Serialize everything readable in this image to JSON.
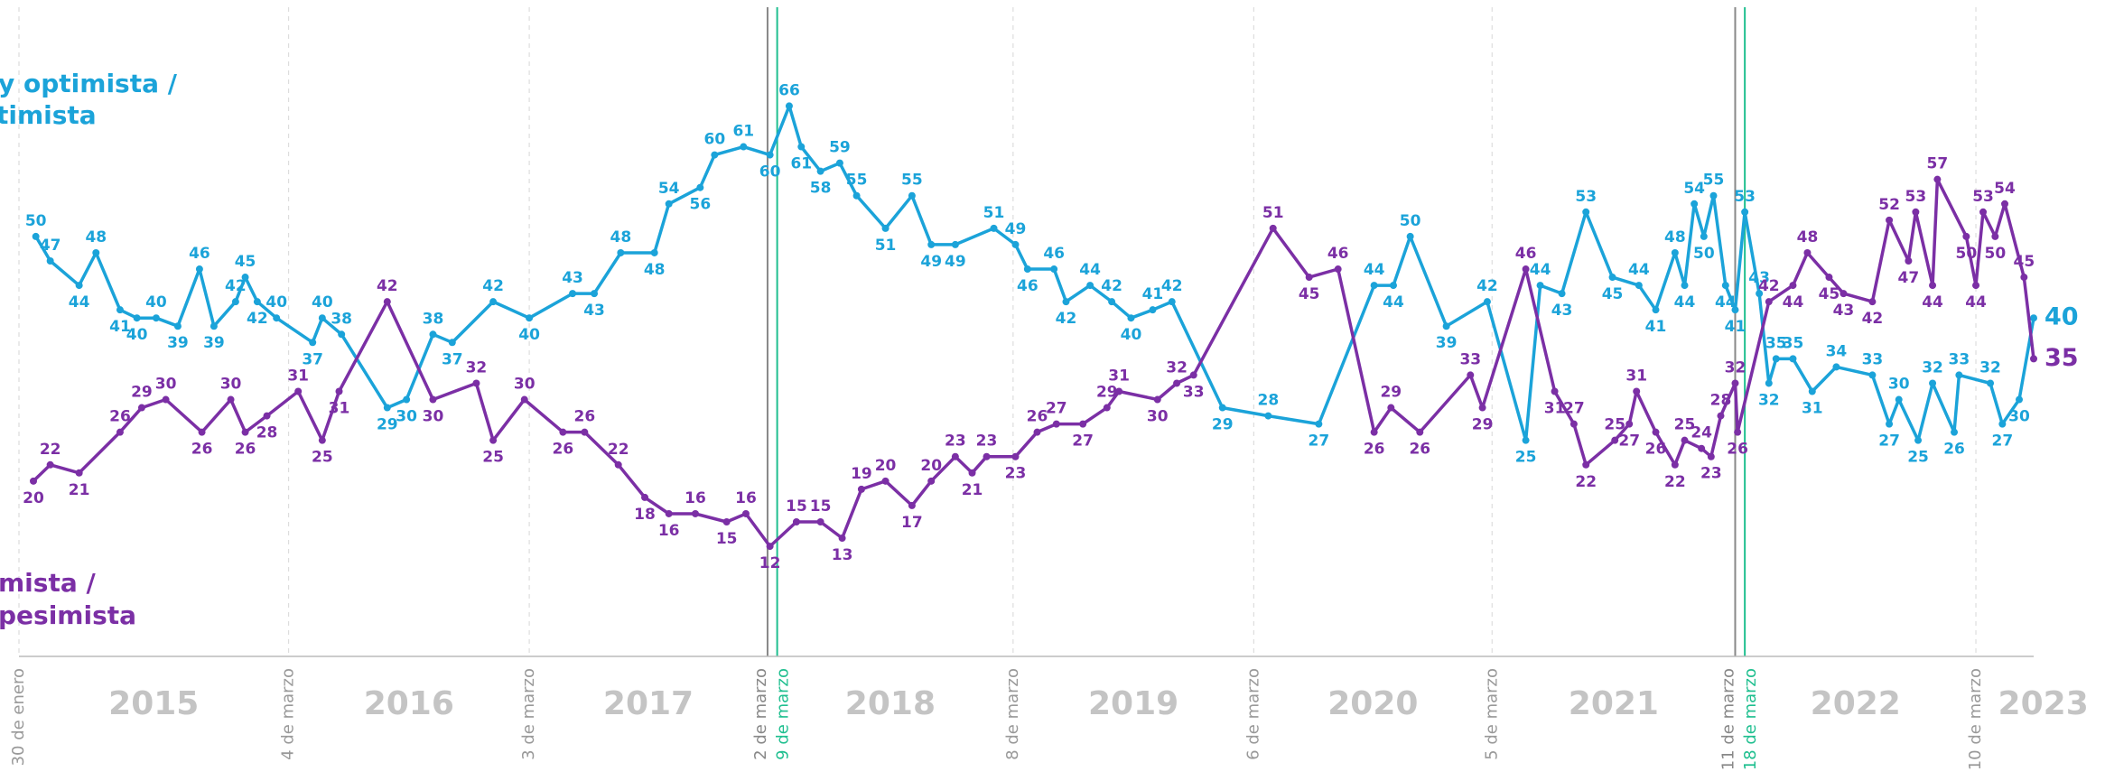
{
  "chart_data": {
    "type": "line",
    "legend": [
      {
        "lines": [
          "y optimista /",
          "timista"
        ],
        "color": "#1ba3d9"
      },
      {
        "lines": [
          "mista /",
          "pesimista"
        ],
        "color": "#7b2fa5"
      }
    ],
    "xlim": [
      2015.08,
      2023.45
    ],
    "ylim": [
      -1.5,
      79
    ],
    "xticks": [
      {
        "value": 2015.08,
        "label": "30 de enero"
      },
      {
        "value": 2016.2,
        "label": "4 de marzo"
      },
      {
        "value": 2017.2,
        "label": "3 de marzo"
      },
      {
        "value": 2018.19,
        "label": "2 de marzo",
        "color": "#888888"
      },
      {
        "value": 2018.23,
        "label": "9 de marzo",
        "color": "#1fbf8f"
      },
      {
        "value": 2019.21,
        "label": "8 de marzo"
      },
      {
        "value": 2020.21,
        "label": "6 de marzo"
      },
      {
        "value": 2021.2,
        "label": "5 de marzo"
      },
      {
        "value": 2022.21,
        "label": "11 de marzo",
        "color": "#888888"
      },
      {
        "value": 2022.25,
        "label": "18 de marzo",
        "color": "#1fbf8f"
      },
      {
        "value": 2023.21,
        "label": "10 de marzo"
      }
    ],
    "year_labels": [
      "2015",
      "2016",
      "2017",
      "2018",
      "2019",
      "2020",
      "2021",
      "2022",
      "2023"
    ],
    "series": [
      {
        "color": "#1ba3d9",
        "x": [
          2015.15,
          2015.21,
          2015.33,
          2015.4,
          2015.5,
          2015.57,
          2015.65,
          2015.74,
          2015.83,
          2015.89,
          2015.98,
          2016.02,
          2016.07,
          2016.15,
          2016.3,
          2016.34,
          2016.42,
          2016.61,
          2016.69,
          2016.8,
          2016.88,
          2017.05,
          2017.2,
          2017.38,
          2017.47,
          2017.58,
          2017.72,
          2017.78,
          2017.91,
          2017.97,
          2018.09,
          2018.2,
          2018.28,
          2018.33,
          2018.41,
          2018.49,
          2018.56,
          2018.68,
          2018.79,
          2018.87,
          2018.97,
          2019.13,
          2019.22,
          2019.27,
          2019.38,
          2019.43,
          2019.53,
          2019.62,
          2019.7,
          2019.79,
          2019.87,
          2020.08,
          2020.27,
          2020.48,
          2020.71,
          2020.79,
          2020.86,
          2021.01,
          2021.18,
          2021.34,
          2021.4,
          2021.49,
          2021.59,
          2021.7,
          2021.81,
          2021.88,
          2021.96,
          2022.0,
          2022.04,
          2022.08,
          2022.12,
          2022.17,
          2022.21,
          2022.25,
          2022.31,
          2022.35,
          2022.38,
          2022.45,
          2022.53,
          2022.63,
          2022.78,
          2022.85,
          2022.89,
          2022.97,
          2023.03,
          2023.12,
          2023.14,
          2023.27,
          2023.32,
          2023.39,
          2023.45
        ],
        "values": [
          50,
          47,
          44,
          48,
          41,
          40,
          40,
          39,
          46,
          39,
          42,
          45,
          42,
          40,
          37,
          40,
          38,
          29,
          30,
          38,
          37,
          42,
          40,
          43,
          43,
          48,
          48,
          54,
          56,
          60,
          61,
          60,
          66,
          61,
          58,
          59,
          55,
          51,
          55,
          49,
          49,
          51,
          49,
          46,
          46,
          42,
          44,
          42,
          40,
          41,
          42,
          29,
          28,
          27,
          44,
          44,
          50,
          39,
          42,
          25,
          44,
          43,
          53,
          45,
          44,
          41,
          48,
          44,
          54,
          50,
          55,
          44,
          41,
          53,
          43,
          32,
          35,
          35,
          31,
          34,
          33,
          27,
          30,
          25,
          32,
          26,
          33,
          32,
          27,
          30,
          40
        ]
      },
      {
        "color": "#7b2fa5",
        "x": [
          2015.14,
          2015.21,
          2015.33,
          2015.5,
          2015.59,
          2015.69,
          2015.84,
          2015.96,
          2016.02,
          2016.11,
          2016.24,
          2016.34,
          2016.41,
          2016.61,
          2016.8,
          2016.98,
          2017.05,
          2017.18,
          2017.34,
          2017.43,
          2017.57,
          2017.68,
          2017.78,
          2017.89,
          2018.02,
          2018.1,
          2018.2,
          2018.31,
          2018.41,
          2018.5,
          2018.58,
          2018.68,
          2018.79,
          2018.87,
          2018.97,
          2019.04,
          2019.1,
          2019.22,
          2019.31,
          2019.39,
          2019.5,
          2019.6,
          2019.65,
          2019.81,
          2019.89,
          2019.96,
          2020.29,
          2020.44,
          2020.56,
          2020.71,
          2020.78,
          2020.9,
          2021.11,
          2021.16,
          2021.34,
          2021.46,
          2021.54,
          2021.59,
          2021.71,
          2021.77,
          2021.8,
          2021.88,
          2021.96,
          2022.0,
          2022.07,
          2022.11,
          2022.15,
          2022.21,
          2022.22,
          2022.35,
          2022.45,
          2022.51,
          2022.6,
          2022.66,
          2022.78,
          2022.85,
          2022.93,
          2022.96,
          2023.03,
          2023.05,
          2023.17,
          2023.21,
          2023.24,
          2023.29,
          2023.33,
          2023.41,
          2023.45
        ],
        "values": [
          20,
          22,
          21,
          26,
          29,
          30,
          26,
          30,
          26,
          28,
          31,
          25,
          31,
          42,
          30,
          32,
          25,
          30,
          26,
          26,
          22,
          18,
          16,
          16,
          15,
          16,
          12,
          15,
          15,
          13,
          19,
          20,
          17,
          20,
          23,
          21,
          23,
          23,
          26,
          27,
          27,
          29,
          31,
          30,
          32,
          33,
          51,
          45,
          46,
          26,
          29,
          26,
          33,
          29,
          46,
          31,
          27,
          22,
          25,
          27,
          31,
          26,
          22,
          25,
          24,
          23,
          28,
          32,
          26,
          42,
          44,
          48,
          45,
          43,
          42,
          52,
          47,
          53,
          44,
          57,
          50,
          44,
          53,
          50,
          54,
          45,
          35
        ]
      }
    ]
  }
}
